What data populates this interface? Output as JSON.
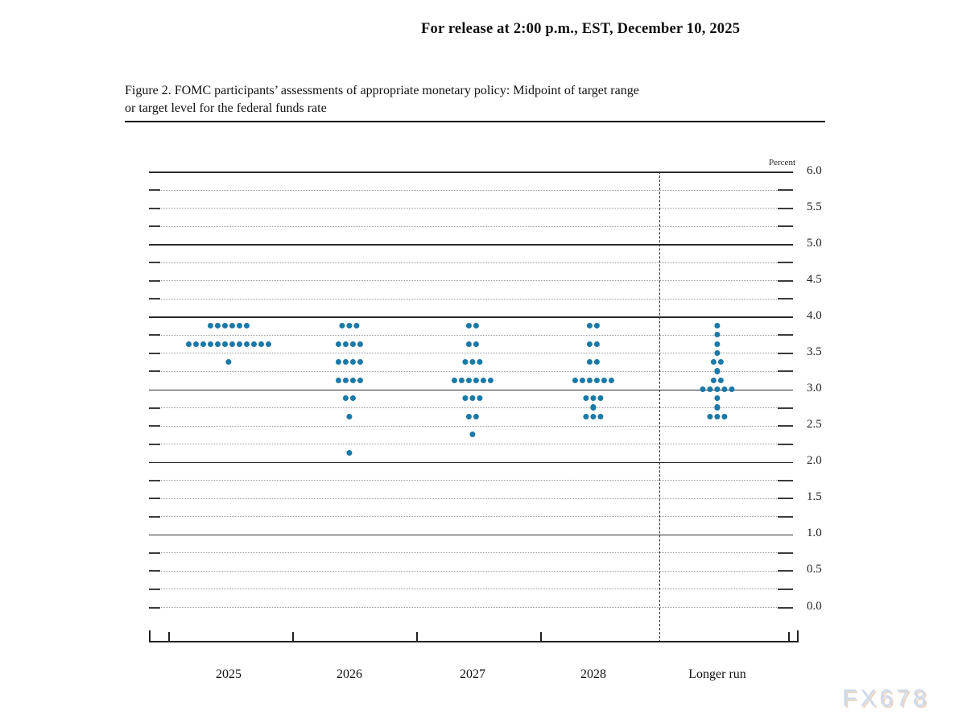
{
  "page": {
    "release_line": "For release at 2:00 p.m., EST, December 10, 2025",
    "figure_title_line1": "Figure 2. FOMC participants’ assessments of appropriate monetary policy: Midpoint of target range",
    "figure_title_line2": "or target level for the federal funds rate",
    "watermark": "FX678"
  },
  "chart_data": {
    "type": "scatter",
    "title": "Figure 2. FOMC participants’ assessments of appropriate monetary policy: Midpoint of target range or target level for the federal funds rate",
    "ylabel": "Percent",
    "xlabel": "",
    "ylim": [
      0.0,
      6.0
    ],
    "grid": true,
    "grid_step": 0.25,
    "label_step": 0.5,
    "legend_position": "none",
    "solid_lines": [
      6.0,
      5.0,
      4.0,
      3.0,
      2.0,
      1.0
    ],
    "ytick_labels": [
      "6.0",
      "5.5",
      "5.0",
      "4.5",
      "4.0",
      "3.5",
      "3.0",
      "2.5",
      "2.0",
      "1.5",
      "1.0",
      "0.5",
      "0.0"
    ],
    "categories": [
      "2025",
      "2026",
      "2027",
      "2028",
      "Longer run"
    ],
    "separator_before_category": "Longer run",
    "dot_color": "#1a79a8",
    "dots_per_column_total": 19,
    "series": [
      {
        "category": "2025",
        "dots": [
          {
            "rate": 3.875,
            "count": 6
          },
          {
            "rate": 3.625,
            "count": 12
          },
          {
            "rate": 3.375,
            "count": 1
          }
        ]
      },
      {
        "category": "2026",
        "dots": [
          {
            "rate": 3.875,
            "count": 3
          },
          {
            "rate": 3.625,
            "count": 4
          },
          {
            "rate": 3.375,
            "count": 4
          },
          {
            "rate": 3.125,
            "count": 4
          },
          {
            "rate": 2.875,
            "count": 2
          },
          {
            "rate": 2.625,
            "count": 1
          },
          {
            "rate": 2.125,
            "count": 1
          }
        ]
      },
      {
        "category": "2027",
        "dots": [
          {
            "rate": 3.875,
            "count": 2
          },
          {
            "rate": 3.625,
            "count": 2
          },
          {
            "rate": 3.375,
            "count": 3
          },
          {
            "rate": 3.125,
            "count": 6
          },
          {
            "rate": 2.875,
            "count": 3
          },
          {
            "rate": 2.625,
            "count": 2
          },
          {
            "rate": 2.375,
            "count": 1
          }
        ]
      },
      {
        "category": "2028",
        "dots": [
          {
            "rate": 3.875,
            "count": 2
          },
          {
            "rate": 3.625,
            "count": 2
          },
          {
            "rate": 3.375,
            "count": 2
          },
          {
            "rate": 3.125,
            "count": 6
          },
          {
            "rate": 2.875,
            "count": 3
          },
          {
            "rate": 2.75,
            "count": 1
          },
          {
            "rate": 2.625,
            "count": 3
          }
        ]
      },
      {
        "category": "Longer run",
        "dots": [
          {
            "rate": 3.875,
            "count": 1
          },
          {
            "rate": 3.75,
            "count": 1
          },
          {
            "rate": 3.625,
            "count": 1
          },
          {
            "rate": 3.5,
            "count": 1
          },
          {
            "rate": 3.375,
            "count": 2
          },
          {
            "rate": 3.25,
            "count": 1
          },
          {
            "rate": 3.125,
            "count": 2
          },
          {
            "rate": 3.0,
            "count": 5
          },
          {
            "rate": 2.875,
            "count": 1
          },
          {
            "rate": 2.75,
            "count": 1
          },
          {
            "rate": 2.625,
            "count": 3
          }
        ]
      }
    ]
  }
}
